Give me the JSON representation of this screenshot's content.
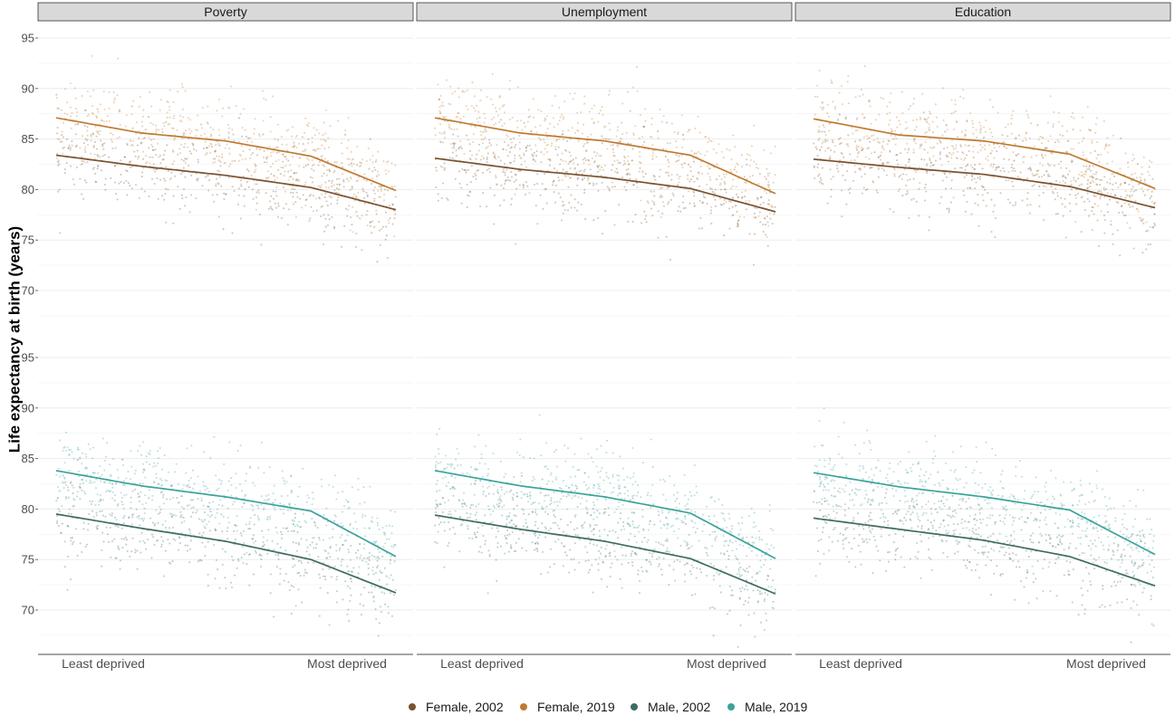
{
  "chart_data": {
    "type": "scatter",
    "ylabel": "Life expectancy at birth (years)",
    "xlabel": "",
    "x_tick_labels": [
      "Least deprived",
      "Most deprived"
    ],
    "facets": [
      "Poverty",
      "Unemployment",
      "Education"
    ],
    "y_ticks": [
      70,
      75,
      80,
      85,
      90,
      95
    ],
    "rows": [
      {
        "group": "Female",
        "ylim": [
          67.5,
          96.5
        ]
      },
      {
        "group": "Male",
        "ylim": [
          66.5,
          96.5
        ]
      }
    ],
    "x_domain": [
      0,
      1
    ],
    "legend_position": "bottom",
    "colors": {
      "Female, 2002": "#7a5230",
      "Female, 2019": "#c07a30",
      "Male, 2002": "#3e6b63",
      "Male, 2019": "#3aa39a"
    },
    "series": [
      {
        "name": "Female, 2002",
        "row": 0,
        "trend_x": [
          0,
          0.25,
          0.5,
          0.75,
          1
        ],
        "trend": {
          "Poverty": [
            83.4,
            82.3,
            81.4,
            80.2,
            78.0
          ],
          "Unemployment": [
            83.1,
            82.0,
            81.2,
            80.1,
            77.8
          ],
          "Education": [
            83.0,
            82.2,
            81.5,
            80.3,
            78.2
          ]
        }
      },
      {
        "name": "Female, 2019",
        "row": 0,
        "trend_x": [
          0,
          0.25,
          0.5,
          0.75,
          1
        ],
        "trend": {
          "Poverty": [
            87.1,
            85.6,
            84.8,
            83.3,
            79.9
          ],
          "Unemployment": [
            87.1,
            85.6,
            84.8,
            83.4,
            79.6
          ],
          "Education": [
            87.0,
            85.4,
            84.8,
            83.5,
            80.1
          ]
        }
      },
      {
        "name": "Male, 2002",
        "row": 1,
        "trend_x": [
          0,
          0.25,
          0.5,
          0.75,
          1
        ],
        "trend": {
          "Poverty": [
            79.5,
            78.1,
            76.8,
            75.0,
            71.7
          ],
          "Unemployment": [
            79.4,
            78.0,
            76.8,
            75.1,
            71.6
          ],
          "Education": [
            79.1,
            78.0,
            76.9,
            75.3,
            72.4
          ]
        }
      },
      {
        "name": "Male, 2019",
        "row": 1,
        "trend_x": [
          0,
          0.25,
          0.5,
          0.75,
          1
        ],
        "trend": {
          "Poverty": [
            83.8,
            82.3,
            81.2,
            79.8,
            75.3
          ],
          "Unemployment": [
            83.8,
            82.3,
            81.2,
            79.6,
            75.1
          ],
          "Education": [
            83.6,
            82.2,
            81.2,
            79.9,
            75.5
          ]
        }
      }
    ],
    "scatter_spread": 2.2
  }
}
